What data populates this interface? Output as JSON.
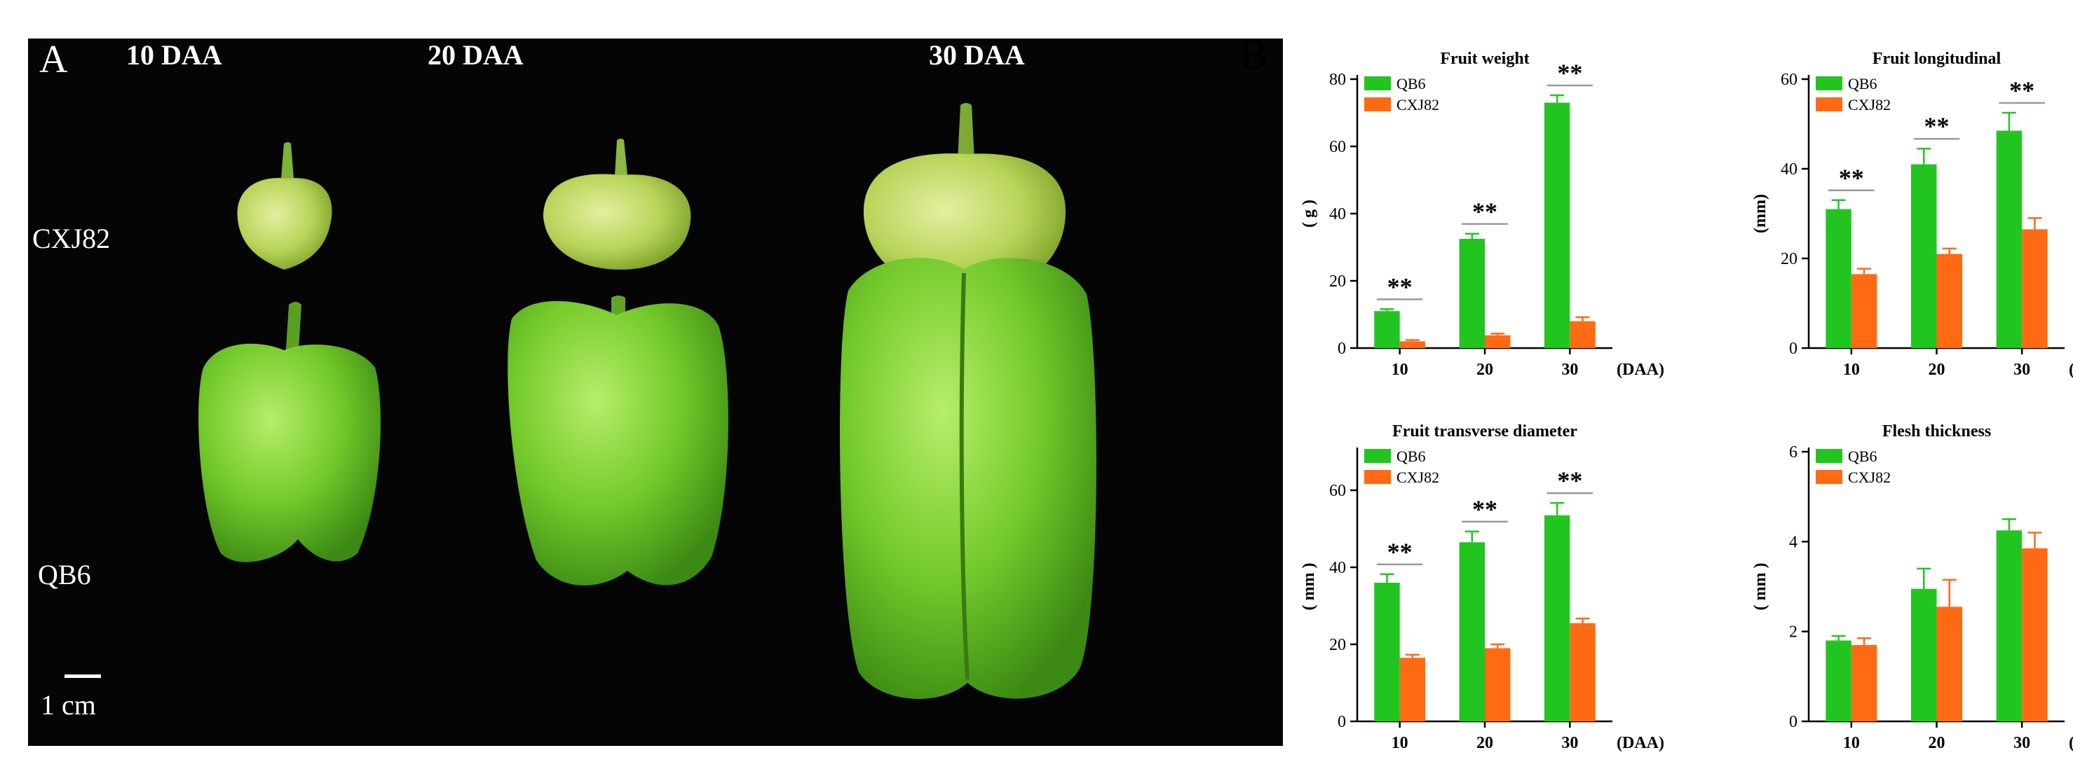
{
  "panel_a": {
    "letter": "A",
    "stages": [
      "10 DAA",
      "20 DAA",
      "30 DAA"
    ],
    "genotypes": [
      "CXJ82",
      "QB6"
    ],
    "scale_label": "1 cm"
  },
  "panel_b_letter": "B",
  "colors": {
    "QB6": "#22c51f",
    "CXJ82": "#ff6a13"
  },
  "chart_data": [
    {
      "type": "bar",
      "title": "Fruit weight",
      "ylabel": "( g )",
      "xlabel": "(DAA)",
      "categories": [
        "10",
        "20",
        "30"
      ],
      "ylim": [
        0,
        80
      ],
      "yticks": [
        0,
        20,
        40,
        60,
        80
      ],
      "legend": "top-left",
      "series": [
        {
          "name": "QB6",
          "values": [
            11,
            32.5,
            73
          ],
          "errors": [
            0.6,
            1.5,
            2.2
          ]
        },
        {
          "name": "CXJ82",
          "values": [
            2,
            3.8,
            8
          ],
          "errors": [
            0.4,
            0.5,
            1.2
          ]
        }
      ],
      "significance": [
        "**",
        "**",
        "**"
      ]
    },
    {
      "type": "bar",
      "title": "Fruit longitudinal",
      "ylabel": "(mm)",
      "xlabel": "(DAA)",
      "categories": [
        "10",
        "20",
        "30"
      ],
      "ylim": [
        0,
        60
      ],
      "yticks": [
        0,
        20,
        40,
        60
      ],
      "legend": "top-left",
      "series": [
        {
          "name": "QB6",
          "values": [
            31,
            41,
            48.5
          ],
          "errors": [
            2,
            3.5,
            4
          ]
        },
        {
          "name": "CXJ82",
          "values": [
            16.5,
            21,
            26.5
          ],
          "errors": [
            1.2,
            1.2,
            2.5
          ]
        }
      ],
      "significance": [
        "**",
        "**",
        "**"
      ]
    },
    {
      "type": "bar",
      "title": "Fruit transverse diameter",
      "ylabel": "( mm )",
      "xlabel": "(DAA)",
      "categories": [
        "10",
        "20",
        "30"
      ],
      "ylim": [
        0,
        70
      ],
      "yticks": [
        0,
        20,
        40,
        60
      ],
      "legend": "top-left",
      "series": [
        {
          "name": "QB6",
          "values": [
            36,
            46.5,
            53.5
          ],
          "errors": [
            2.2,
            2.8,
            3.2
          ]
        },
        {
          "name": "CXJ82",
          "values": [
            16.5,
            19,
            25.5
          ],
          "errors": [
            0.8,
            1,
            1.2
          ]
        }
      ],
      "significance": [
        "**",
        "**",
        "**"
      ]
    },
    {
      "type": "bar",
      "title": "Flesh thickness",
      "ylabel": "( mm )",
      "xlabel": "(DAA)",
      "categories": [
        "10",
        "20",
        "30"
      ],
      "ylim": [
        0,
        6
      ],
      "yticks": [
        0,
        2,
        4,
        6
      ],
      "legend": "top-left",
      "series": [
        {
          "name": "QB6",
          "values": [
            1.8,
            2.95,
            4.25
          ],
          "errors": [
            0.1,
            0.45,
            0.25
          ]
        },
        {
          "name": "CXJ82",
          "values": [
            1.7,
            2.55,
            3.85
          ],
          "errors": [
            0.15,
            0.6,
            0.35
          ]
        }
      ],
      "significance": []
    }
  ]
}
